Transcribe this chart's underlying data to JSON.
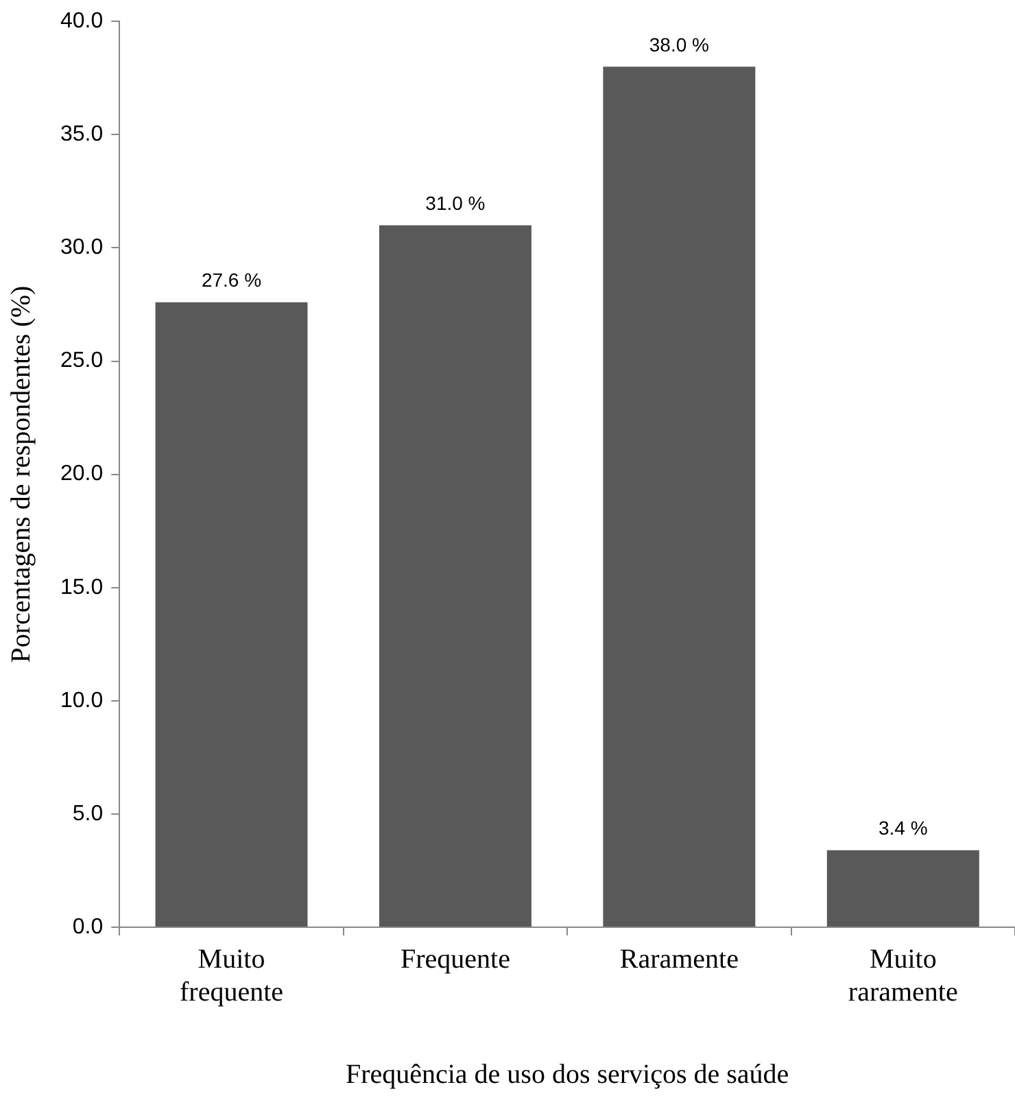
{
  "chart_data": {
    "type": "bar",
    "xlabel": "Frequência de uso dos serviços de saúde",
    "ylabel": "Porcentagens de respondentes (%)",
    "categories": [
      "Muito frequente",
      "Frequente",
      "Raramente",
      "Muito raramente"
    ],
    "values": [
      27.6,
      31.0,
      38.0,
      3.4
    ],
    "color": "#595959",
    "value_labels": [
      "27.6 %",
      "31.0 %",
      "38.0 %",
      "3.4 %"
    ],
    "ylim": [
      0,
      40
    ],
    "yticks": [
      {
        "value": 0,
        "label": "0.0"
      },
      {
        "value": 5,
        "label": "5.0"
      },
      {
        "value": 10,
        "label": "10.0"
      },
      {
        "value": 15,
        "label": "15.0"
      },
      {
        "value": 20,
        "label": "20.0"
      },
      {
        "value": 25,
        "label": "25.0"
      },
      {
        "value": 30,
        "label": "30.0"
      },
      {
        "value": 35,
        "label": "35.0"
      },
      {
        "value": 40,
        "label": "40.0"
      }
    ],
    "grid": false,
    "legend": false
  }
}
